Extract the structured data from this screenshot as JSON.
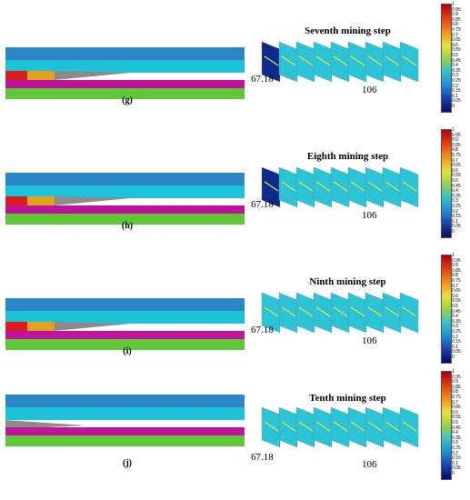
{
  "panels": [
    {
      "caption": "(g)",
      "title": "Seventh mining step",
      "label_left": "67.18",
      "label_bottom": "106"
    },
    {
      "caption": "(h)",
      "title": "Eighth mining step",
      "label_left": "67.18",
      "label_bottom": "106"
    },
    {
      "caption": "(i)",
      "title": "Ninth mining step",
      "label_left": "67.18",
      "label_bottom": "106"
    },
    {
      "caption": "(j)",
      "title": "Tenth mining step",
      "label_left": "67.18",
      "label_bottom": "106"
    }
  ],
  "colorbar_ticks": [
    "1",
    "0.95",
    "0.9",
    "0.85",
    "0.8",
    "0.75",
    "0.7",
    "0.65",
    "0.6",
    "0.55",
    "0.5",
    "0.45",
    "0.4",
    "0.35",
    "0.3",
    "0.25",
    "0.2",
    "0.15",
    "0.1",
    "0.05",
    "0"
  ],
  "colors": {
    "layer_top": "#2a86c6",
    "layer_mid": "#1ec2d8",
    "layer_coal": "#c0139c",
    "layer_base": "#5fc837",
    "red_zone": "#d81e1e",
    "orange_zone": "#e0a21c",
    "caved": "#8e8a8a",
    "slice_bg": "#2bc4d6",
    "slice_dark": "#0b2a8a",
    "slice_yellow": "#e8e23a"
  }
}
